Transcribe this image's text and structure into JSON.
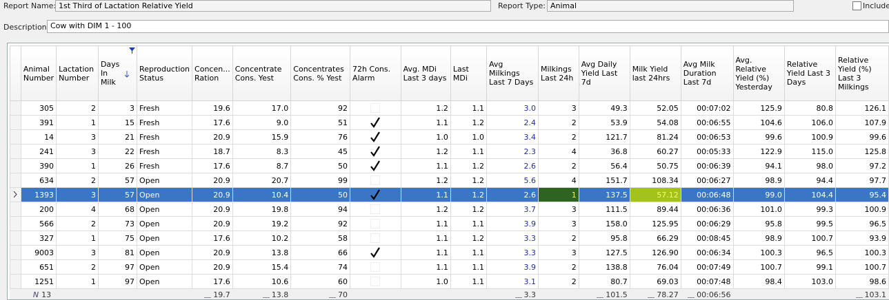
{
  "form": {
    "report_name_label": "Report Name:",
    "report_name": "1st Third of Lactation Relative Yield",
    "report_type_label": "Report Type:",
    "report_type": "Animal",
    "include_label": "Include",
    "description_label": "Description:",
    "description": "Cow with DIM 1 - 100"
  },
  "table": {
    "columns": [
      "Animal Number",
      "Lactation Number",
      "Days In Milk",
      "Reproduction Status",
      "Concen... Ration",
      "Concentrate Cons. Yest",
      "Concentrates Cons. % Yest",
      "72h Cons. Alarm",
      "Avg. MDi Last 3 days",
      "Last MDi",
      "Avg Milkings Last 7 Days",
      "Milkings Last 24h",
      "Avg Daily Yield Last 7d",
      "Milk Yield last 24hrs",
      "Avg Milk Duration Last 7d",
      "Avg. Relative Yield (%) Yesterday",
      "Relative Yield Last 3 Days",
      "Relative Yield (%) Last 3 Milkings"
    ],
    "rows": [
      [
        "305",
        "2",
        "3",
        "Fresh",
        "19.6",
        "17.0",
        "92",
        false,
        "1.2",
        "1.1",
        "3.0",
        "3",
        "49.3",
        "52.05",
        "00:07:02",
        "125.9",
        "80.8",
        "126.1"
      ],
      [
        "391",
        "1",
        "15",
        "Fresh",
        "17.6",
        "9.0",
        "51",
        true,
        "1.1",
        "1.2",
        "2.4",
        "2",
        "53.9",
        "54.08",
        "00:06:55",
        "104.6",
        "106.0",
        "107.9"
      ],
      [
        "14",
        "3",
        "21",
        "Fresh",
        "20.9",
        "15.9",
        "76",
        true,
        "1.0",
        "1.0",
        "3.4",
        "2",
        "121.7",
        "81.24",
        "00:06:53",
        "99.6",
        "100.9",
        "99.6"
      ],
      [
        "241",
        "3",
        "22",
        "Fresh",
        "18.7",
        "8.3",
        "45",
        true,
        "1.2",
        "1.1",
        "2.3",
        "4",
        "36.8",
        "60.27",
        "00:05:33",
        "122.9",
        "115.0",
        "125.8"
      ],
      [
        "390",
        "1",
        "26",
        "Fresh",
        "17.6",
        "8.7",
        "50",
        true,
        "1.1",
        "1.2",
        "2.6",
        "2",
        "56.4",
        "50.75",
        "00:06:39",
        "94.1",
        "98.0",
        "97.2"
      ],
      [
        "634",
        "2",
        "57",
        "Open",
        "20.9",
        "20.7",
        "99",
        false,
        "1.2",
        "1.2",
        "5.6",
        "4",
        "151.7",
        "108.34",
        "00:06:27",
        "98.9",
        "94.4",
        "97.7"
      ],
      [
        "1393",
        "3",
        "57",
        "Open",
        "20.9",
        "10.4",
        "50",
        true,
        "1.1",
        "1.2",
        "2.6",
        "1",
        "137.5",
        "57.12",
        "00:06:48",
        "99.0",
        "104.4",
        "95.4"
      ],
      [
        "200",
        "4",
        "68",
        "Open",
        "20.9",
        "19.8",
        "94",
        false,
        "1.2",
        "1.2",
        "3.7",
        "3",
        "111.5",
        "89.44",
        "00:06:36",
        "101.0",
        "99.3",
        "100.9"
      ],
      [
        "566",
        "2",
        "73",
        "Open",
        "20.9",
        "19.2",
        "92",
        false,
        "1.1",
        "1.1",
        "3.9",
        "3",
        "158.0",
        "125.95",
        "00:06:29",
        "95.8",
        "99.5",
        "96.5"
      ],
      [
        "327",
        "1",
        "75",
        "Open",
        "17.6",
        "10.2",
        "58",
        false,
        "1.1",
        "1.2",
        "3.3",
        "2",
        "95.8",
        "66.29",
        "00:08:45",
        "98.9",
        "100.7",
        "93.9"
      ],
      [
        "9003",
        "3",
        "81",
        "Open",
        "20.9",
        "13.8",
        "66",
        true,
        "1.1",
        "1.1",
        "3.3",
        "3",
        "127.5",
        "126.90",
        "00:06:34",
        "100.3",
        "96.5",
        "100.3"
      ],
      [
        "651",
        "2",
        "97",
        "Open",
        "20.9",
        "15.4",
        "74",
        false,
        "1.1",
        "1.1",
        "3.9",
        "2",
        "138.8",
        "76.04",
        "00:07:49",
        "100.7",
        "99.1",
        "100.7"
      ],
      [
        "1251",
        "1",
        "97",
        "Open",
        "17.6",
        "10.6",
        "60",
        false,
        "1.0",
        "1.1",
        "3.1",
        "2",
        "80.7",
        "69.03",
        "00:07:48",
        "98.4",
        "103.0",
        "98.6"
      ]
    ],
    "selected_row": 6,
    "highlights": [
      {
        "row": 6,
        "col": 11
      },
      {
        "row": 6,
        "col": 13
      }
    ],
    "footer": [
      {
        "symbol": "N",
        "value": "13"
      },
      null,
      null,
      null,
      {
        "value": "19.7"
      },
      {
        "value": "13.8"
      },
      {
        "value": "70"
      },
      null,
      null,
      null,
      {
        "value": "3.3"
      },
      null,
      {
        "value": "101.5"
      },
      {
        "value": "78.27"
      },
      {
        "value": "00:06:56"
      },
      null,
      null,
      {
        "value": "103.1"
      }
    ]
  }
}
